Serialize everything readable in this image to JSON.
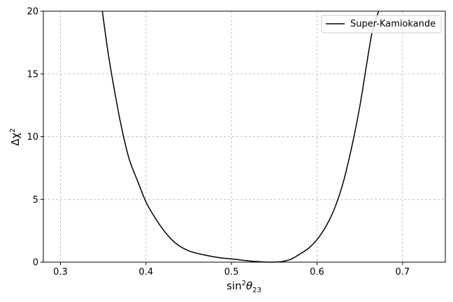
{
  "chart_data": {
    "type": "line",
    "title": "",
    "xlabel": "sin²θ₂₃",
    "xlabel_parts": {
      "base": "sin",
      "sup": "2",
      "theta": "θ",
      "sub": "23"
    },
    "ylabel": "Δχ²",
    "ylabel_parts": {
      "base": "Δχ",
      "sup": "2"
    },
    "xlim": [
      0.28,
      0.75
    ],
    "ylim": [
      0,
      20
    ],
    "xticks": [
      0.3,
      0.4,
      0.5,
      0.6,
      0.7
    ],
    "xtick_labels": [
      "0.3",
      "0.4",
      "0.5",
      "0.6",
      "0.7"
    ],
    "yticks": [
      0,
      5,
      10,
      15,
      20
    ],
    "ytick_labels": [
      "0",
      "5",
      "10",
      "15",
      "20"
    ],
    "grid": true,
    "legend_position": "top-right",
    "series": [
      {
        "name": "Super-Kamiokande",
        "color": "#000000",
        "x": [
          0.349,
          0.355,
          0.36,
          0.37,
          0.38,
          0.39,
          0.4,
          0.41,
          0.42,
          0.43,
          0.44,
          0.45,
          0.46,
          0.47,
          0.48,
          0.49,
          0.5,
          0.51,
          0.52,
          0.53,
          0.54,
          0.548,
          0.555,
          0.56,
          0.57,
          0.58,
          0.59,
          0.6,
          0.61,
          0.62,
          0.63,
          0.64,
          0.65,
          0.66,
          0.665,
          0.672
        ],
        "y": [
          20.0,
          17.0,
          14.9,
          11.2,
          8.3,
          6.5,
          4.8,
          3.6,
          2.6,
          1.8,
          1.25,
          0.9,
          0.7,
          0.55,
          0.42,
          0.32,
          0.26,
          0.18,
          0.1,
          0.05,
          0.01,
          0.0,
          0.02,
          0.06,
          0.25,
          0.65,
          1.1,
          1.8,
          2.8,
          4.2,
          6.2,
          9.0,
          12.4,
          16.6,
          18.5,
          20.0
        ]
      }
    ]
  }
}
